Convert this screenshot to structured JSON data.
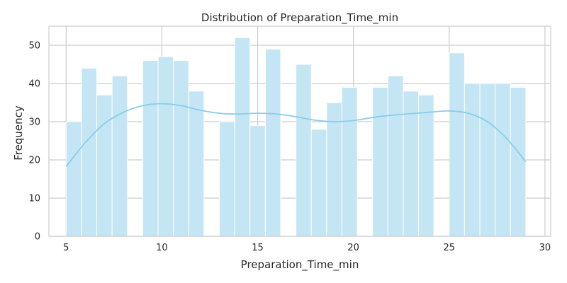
{
  "chart_data": {
    "type": "bar",
    "title": "Distribution of Preparation_Time_min",
    "xlabel": "Preparation_Time_min",
    "ylabel": "Frequency",
    "xlim": [
      4.1,
      30.3
    ],
    "ylim": [
      0,
      55
    ],
    "xticks": [
      5,
      10,
      15,
      20,
      25,
      30
    ],
    "yticks": [
      0,
      10,
      20,
      30,
      40,
      50
    ],
    "grid": true,
    "bin_width": 0.8,
    "bins": [
      {
        "start": 5.0,
        "count": 30
      },
      {
        "start": 5.8,
        "count": 44
      },
      {
        "start": 6.6,
        "count": 37
      },
      {
        "start": 7.4,
        "count": 42
      },
      {
        "start": 8.2,
        "count": 0
      },
      {
        "start": 9.0,
        "count": 46
      },
      {
        "start": 9.8,
        "count": 47
      },
      {
        "start": 10.6,
        "count": 46
      },
      {
        "start": 11.4,
        "count": 38
      },
      {
        "start": 12.2,
        "count": 0
      },
      {
        "start": 13.0,
        "count": 30
      },
      {
        "start": 13.8,
        "count": 52
      },
      {
        "start": 14.6,
        "count": 29
      },
      {
        "start": 15.4,
        "count": 49
      },
      {
        "start": 16.2,
        "count": 0
      },
      {
        "start": 17.0,
        "count": 45
      },
      {
        "start": 17.8,
        "count": 28
      },
      {
        "start": 18.6,
        "count": 35
      },
      {
        "start": 19.4,
        "count": 39
      },
      {
        "start": 20.2,
        "count": 0
      },
      {
        "start": 21.0,
        "count": 39
      },
      {
        "start": 21.8,
        "count": 42
      },
      {
        "start": 22.6,
        "count": 38
      },
      {
        "start": 23.4,
        "count": 37
      },
      {
        "start": 24.2,
        "count": 0
      },
      {
        "start": 25.0,
        "count": 48
      },
      {
        "start": 25.8,
        "count": 40
      },
      {
        "start": 26.6,
        "count": 40
      },
      {
        "start": 27.4,
        "count": 40
      },
      {
        "start": 28.2,
        "count": 39
      }
    ],
    "kde": {
      "x": [
        5.0,
        6.0,
        7.0,
        8.0,
        9.0,
        10.0,
        11.0,
        12.0,
        13.0,
        14.0,
        15.0,
        16.0,
        17.0,
        18.0,
        19.0,
        20.0,
        21.0,
        22.0,
        23.0,
        24.0,
        25.0,
        26.0,
        27.0,
        28.0,
        29.0
      ],
      "y": [
        18.3,
        24.5,
        29.5,
        32.5,
        34.2,
        34.7,
        34.2,
        33.0,
        32.2,
        32.0,
        32.2,
        32.0,
        31.3,
        30.4,
        30.0,
        30.3,
        31.1,
        31.7,
        32.1,
        32.5,
        32.8,
        32.2,
        30.0,
        25.6,
        19.5
      ]
    },
    "colors": {
      "bar_fill": "#c4e5f4",
      "bar_edge": "#ffffff",
      "kde_line": "#87ceeb",
      "grid": "#cccccc",
      "axes_edge": "#cccccc",
      "text": "#262626"
    }
  }
}
